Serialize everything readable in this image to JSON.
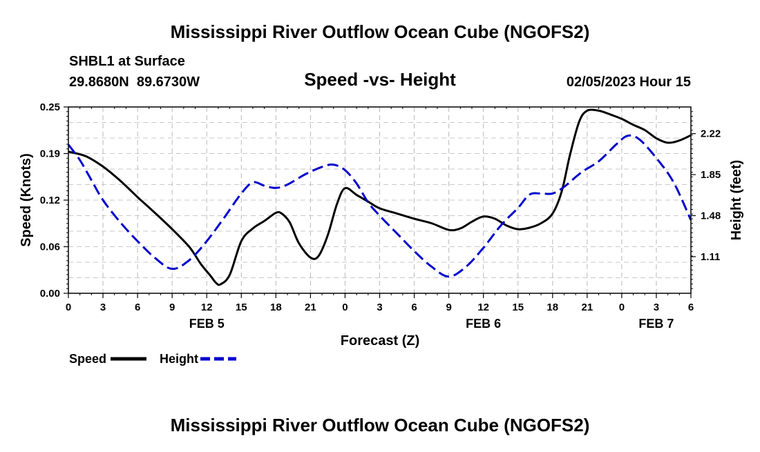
{
  "page": {
    "title": "Mississippi River Outflow Ocean Cube (NGOFS2)",
    "footer_title": "Mississippi River Outflow Ocean Cube (NGOFS2)"
  },
  "chart_data": {
    "type": "line",
    "station": "SHBL1 at Surface",
    "coordinates": "29.8680N  89.6730W",
    "title": "Speed -vs- Height",
    "timestamp": "02/05/2023 Hour 15",
    "xlabel": "Forecast (Z)",
    "ylabel_left": "Speed (Knots)",
    "ylabel_right": "Height (feet)",
    "x_range_hours": [
      0,
      54
    ],
    "ylim_left": [
      0,
      0.25
    ],
    "ylim_right": [
      0.78,
      2.46
    ],
    "grid": true,
    "x_ticks": [
      {
        "hour": 0,
        "label": "0"
      },
      {
        "hour": 3,
        "label": "3"
      },
      {
        "hour": 6,
        "label": "6"
      },
      {
        "hour": 9,
        "label": "9"
      },
      {
        "hour": 12,
        "label": "12"
      },
      {
        "hour": 15,
        "label": "15"
      },
      {
        "hour": 18,
        "label": "18"
      },
      {
        "hour": 21,
        "label": "21"
      },
      {
        "hour": 24,
        "label": "0"
      },
      {
        "hour": 27,
        "label": "3"
      },
      {
        "hour": 30,
        "label": "6"
      },
      {
        "hour": 33,
        "label": "9"
      },
      {
        "hour": 36,
        "label": "12"
      },
      {
        "hour": 39,
        "label": "15"
      },
      {
        "hour": 42,
        "label": "18"
      },
      {
        "hour": 45,
        "label": "21"
      },
      {
        "hour": 48,
        "label": "0"
      },
      {
        "hour": 51,
        "label": "3"
      },
      {
        "hour": 54,
        "label": "6"
      }
    ],
    "date_labels": [
      {
        "hour": 12,
        "label": "FEB 5"
      },
      {
        "hour": 36,
        "label": "FEB 6"
      },
      {
        "hour": 51,
        "label": "FEB 7"
      }
    ],
    "left_ticks": [
      {
        "value": 0.0,
        "label": "0.00"
      },
      {
        "value": 0.0625,
        "label": "0.06"
      },
      {
        "value": 0.125,
        "label": "0.12"
      },
      {
        "value": 0.1875,
        "label": "0.19"
      },
      {
        "value": 0.25,
        "label": "0.25"
      }
    ],
    "right_ticks": [
      {
        "value": 1.11,
        "label": "1.11"
      },
      {
        "value": 1.48,
        "label": "1.48"
      },
      {
        "value": 1.85,
        "label": "1.85"
      },
      {
        "value": 2.22,
        "label": "2.22"
      }
    ],
    "series": [
      {
        "name": "Speed",
        "axis": "left",
        "color": "#000000",
        "dash": "solid",
        "points": [
          [
            0,
            0.19
          ],
          [
            1.5,
            0.184
          ],
          [
            3,
            0.17
          ],
          [
            4.5,
            0.151
          ],
          [
            6,
            0.129
          ],
          [
            7.5,
            0.108
          ],
          [
            9,
            0.086
          ],
          [
            10.5,
            0.062
          ],
          [
            11.5,
            0.039
          ],
          [
            12.3,
            0.024
          ],
          [
            12.8,
            0.014
          ],
          [
            13.2,
            0.012
          ],
          [
            14,
            0.025
          ],
          [
            15,
            0.07
          ],
          [
            16,
            0.087
          ],
          [
            17,
            0.097
          ],
          [
            18,
            0.108
          ],
          [
            18.5,
            0.107
          ],
          [
            19.2,
            0.095
          ],
          [
            20,
            0.067
          ],
          [
            21,
            0.048
          ],
          [
            21.7,
            0.05
          ],
          [
            22.5,
            0.078
          ],
          [
            23.3,
            0.12
          ],
          [
            24,
            0.141
          ],
          [
            25,
            0.132
          ],
          [
            26,
            0.123
          ],
          [
            27,
            0.114
          ],
          [
            28.5,
            0.107
          ],
          [
            30,
            0.1
          ],
          [
            31.5,
            0.094
          ],
          [
            33,
            0.085
          ],
          [
            34,
            0.087
          ],
          [
            35,
            0.096
          ],
          [
            36,
            0.103
          ],
          [
            37,
            0.1
          ],
          [
            38,
            0.091
          ],
          [
            39,
            0.086
          ],
          [
            40,
            0.088
          ],
          [
            41,
            0.094
          ],
          [
            42,
            0.107
          ],
          [
            42.8,
            0.137
          ],
          [
            43.5,
            0.185
          ],
          [
            44.3,
            0.23
          ],
          [
            45,
            0.245
          ],
          [
            46,
            0.245
          ],
          [
            47,
            0.24
          ],
          [
            48,
            0.234
          ],
          [
            49,
            0.226
          ],
          [
            50,
            0.219
          ],
          [
            51,
            0.208
          ],
          [
            52,
            0.202
          ],
          [
            53,
            0.205
          ],
          [
            54,
            0.212
          ]
        ]
      },
      {
        "name": "Height",
        "axis": "right",
        "color": "#0000cc",
        "dash": "dashed",
        "points": [
          [
            0,
            2.12
          ],
          [
            1,
            1.98
          ],
          [
            2,
            1.8
          ],
          [
            3,
            1.62
          ],
          [
            4.5,
            1.42
          ],
          [
            6,
            1.25
          ],
          [
            7.5,
            1.1
          ],
          [
            9,
            1.0
          ],
          [
            10.5,
            1.08
          ],
          [
            12,
            1.25
          ],
          [
            13.5,
            1.46
          ],
          [
            15,
            1.68
          ],
          [
            16,
            1.78
          ],
          [
            17,
            1.75
          ],
          [
            18,
            1.73
          ],
          [
            19,
            1.76
          ],
          [
            20.5,
            1.85
          ],
          [
            22,
            1.92
          ],
          [
            23,
            1.94
          ],
          [
            24,
            1.89
          ],
          [
            25,
            1.77
          ],
          [
            26,
            1.6
          ],
          [
            27,
            1.48
          ],
          [
            28.5,
            1.32
          ],
          [
            30,
            1.16
          ],
          [
            31.5,
            1.02
          ],
          [
            33,
            0.93
          ],
          [
            34.5,
            1.02
          ],
          [
            36,
            1.19
          ],
          [
            37.5,
            1.39
          ],
          [
            39,
            1.55
          ],
          [
            40,
            1.67
          ],
          [
            41,
            1.68
          ],
          [
            42,
            1.68
          ],
          [
            43,
            1.74
          ],
          [
            44.5,
            1.87
          ],
          [
            46,
            1.97
          ],
          [
            47.5,
            2.12
          ],
          [
            48.5,
            2.2
          ],
          [
            49.5,
            2.17
          ],
          [
            51,
            2.0
          ],
          [
            52.5,
            1.78
          ],
          [
            54,
            1.44
          ]
        ]
      }
    ],
    "legend": [
      {
        "label": "Speed",
        "color": "#000000",
        "dash": "solid"
      },
      {
        "label": "Height",
        "color": "#0000cc",
        "dash": "dashed"
      }
    ]
  }
}
